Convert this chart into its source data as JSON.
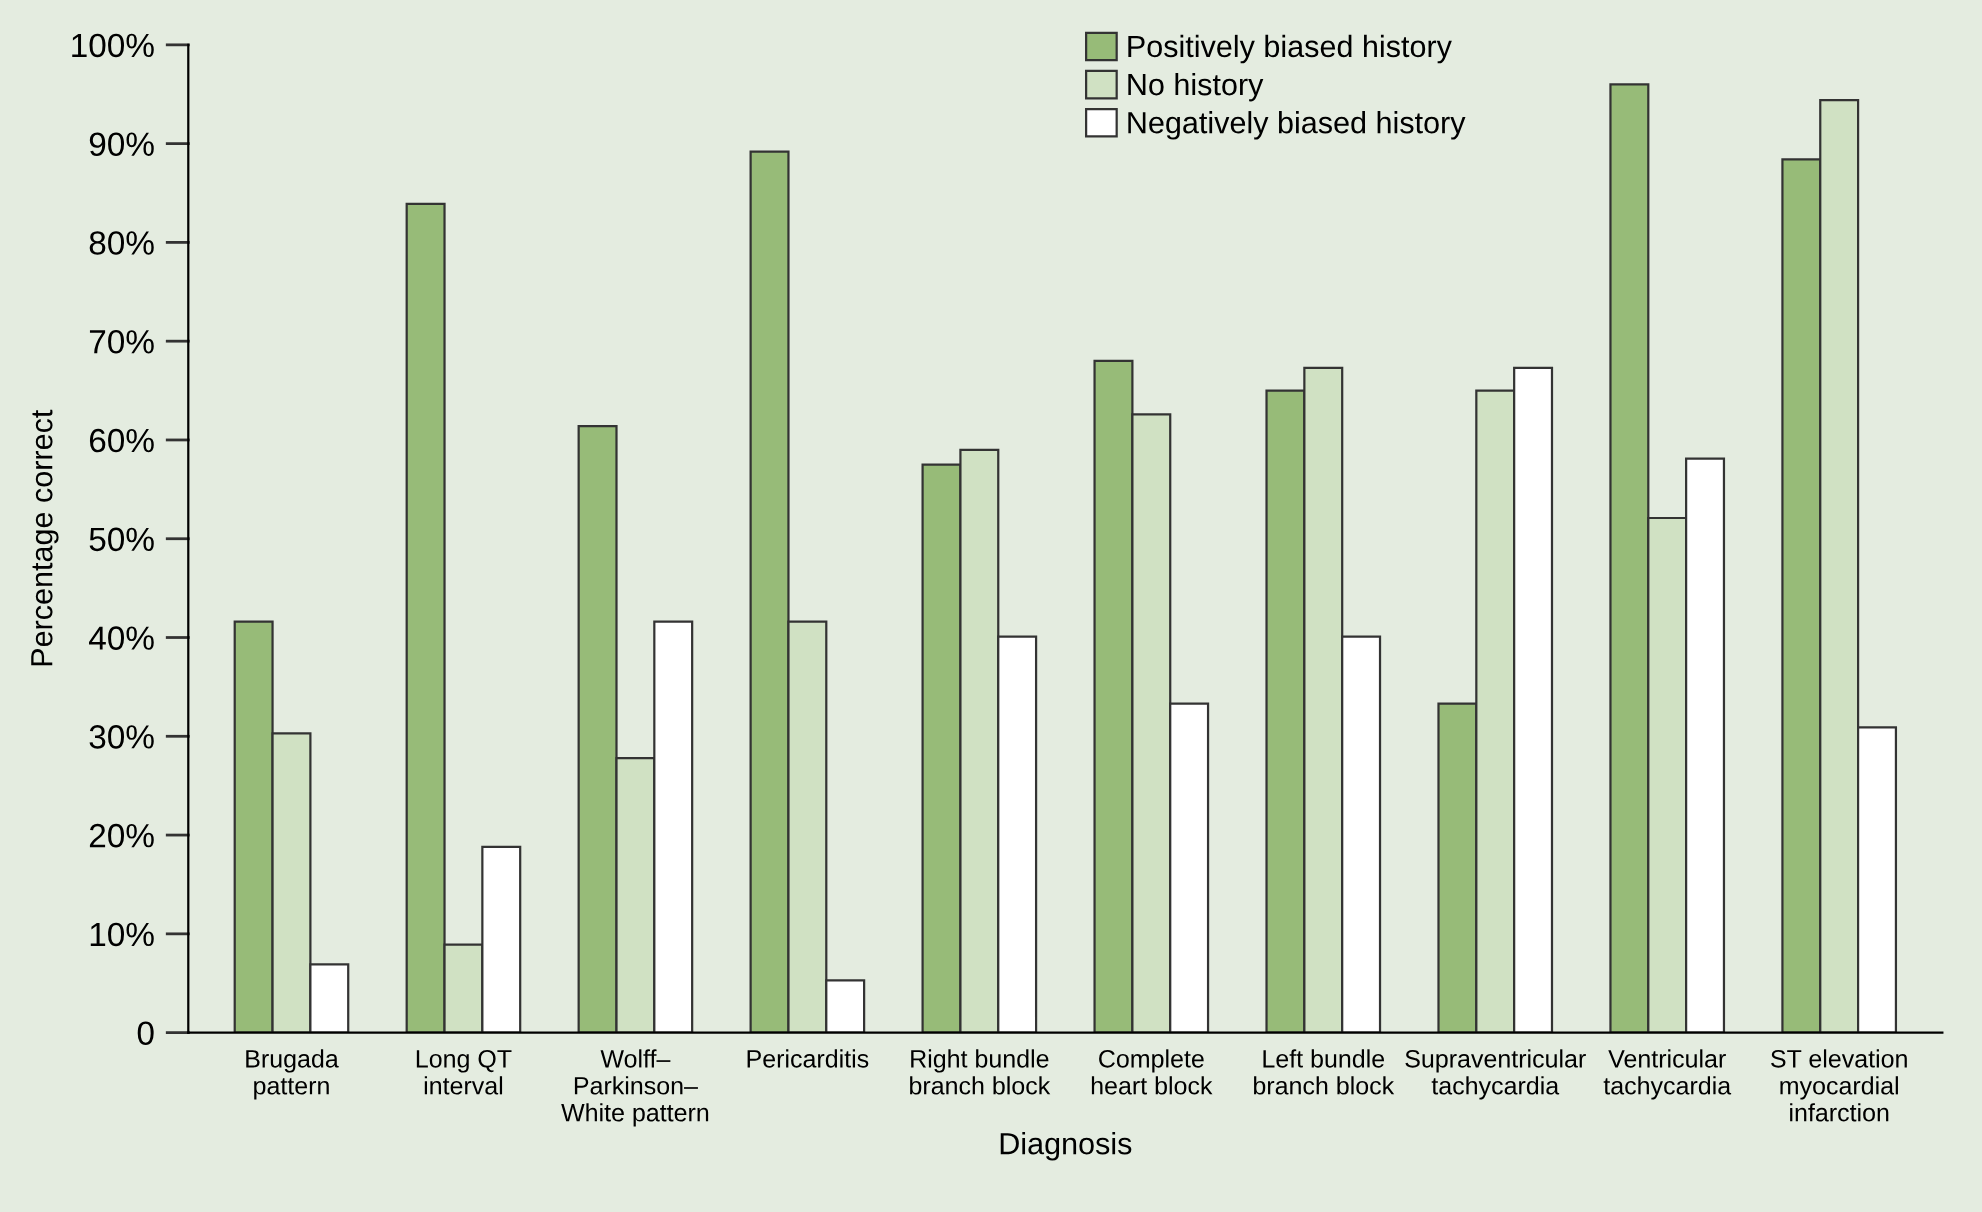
{
  "chart_data": {
    "type": "bar",
    "xlabel": "Diagnosis",
    "ylabel": "Percentage correct",
    "categories": [
      "Brugada\npattern",
      "Long QT\ninterval",
      "Wolff–\nParkinson–\nWhite pattern",
      "Pericarditis",
      "Right bundle\nbranch block",
      "Complete\nheart block",
      "Left bundle\nbranch block",
      "Supraventricular\ntachycardia",
      "Ventricular\ntachycardia",
      "ST elevation\nmyocardial\ninfarction"
    ],
    "series": [
      {
        "name": "Positively biased history",
        "color": "#97bb78",
        "values": [
          41.6,
          83.9,
          61.4,
          89.2,
          57.5,
          68.0,
          65.0,
          33.3,
          96.0,
          88.4
        ]
      },
      {
        "name": "No history",
        "color": "#d0e1c3",
        "values": [
          30.3,
          8.9,
          27.8,
          41.6,
          59.0,
          62.6,
          67.3,
          65.0,
          52.1,
          94.4
        ]
      },
      {
        "name": "Negatively biased history",
        "color": "#ffffff",
        "values": [
          6.9,
          18.8,
          41.6,
          5.3,
          40.1,
          33.3,
          40.1,
          67.3,
          58.1,
          30.9
        ]
      }
    ],
    "ylim": [
      0,
      100
    ],
    "yticks": [
      {
        "value": 0,
        "label": "0"
      },
      {
        "value": 10,
        "label": "10%"
      },
      {
        "value": 20,
        "label": "20%"
      },
      {
        "value": 30,
        "label": "30%"
      },
      {
        "value": 40,
        "label": "40%"
      },
      {
        "value": 50,
        "label": "50%"
      },
      {
        "value": 60,
        "label": "60%"
      },
      {
        "value": 70,
        "label": "70%"
      },
      {
        "value": 80,
        "label": "80%"
      },
      {
        "value": 90,
        "label": "90%"
      },
      {
        "value": 100,
        "label": "100%"
      }
    ],
    "grid": false,
    "legend": "top"
  }
}
